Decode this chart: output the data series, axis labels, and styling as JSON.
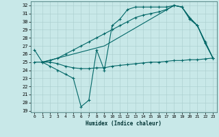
{
  "xlabel": "Humidex (Indice chaleur)",
  "background_color": "#c8e8e8",
  "grid_color": "#a8cccc",
  "line_color": "#006666",
  "ylim": [
    19,
    32.5
  ],
  "xlim": [
    -0.5,
    23.5
  ],
  "yticks": [
    19,
    20,
    21,
    22,
    23,
    24,
    25,
    26,
    27,
    28,
    29,
    30,
    31,
    32
  ],
  "xticks": [
    0,
    1,
    2,
    3,
    4,
    5,
    6,
    7,
    8,
    9,
    10,
    11,
    12,
    13,
    14,
    15,
    16,
    17,
    18,
    19,
    20,
    21,
    22,
    23
  ],
  "curves": [
    {
      "x": [
        0,
        1,
        2,
        3,
        4,
        5,
        6,
        7,
        8,
        9,
        10,
        11,
        12,
        13,
        14,
        15,
        16,
        17,
        18,
        19,
        20,
        21,
        22,
        23
      ],
      "y": [
        25.0,
        25.0,
        25.0,
        24.8,
        24.5,
        24.3,
        24.2,
        24.2,
        24.3,
        24.3,
        24.5,
        24.6,
        24.7,
        24.8,
        24.9,
        25.0,
        25.0,
        25.1,
        25.2,
        25.2,
        25.3,
        25.3,
        25.4,
        25.5
      ],
      "marker": "+",
      "markersize": 3.5,
      "linewidth": 0.8
    },
    {
      "x": [
        1,
        9,
        18,
        19,
        20,
        21,
        22,
        23
      ],
      "y": [
        25.0,
        27.0,
        32.0,
        31.8,
        30.5,
        29.5,
        27.5,
        25.5
      ],
      "marker": null,
      "markersize": 0,
      "linewidth": 0.8
    },
    {
      "x": [
        0,
        1,
        2,
        3,
        4,
        5,
        6,
        7,
        8,
        9,
        10,
        11,
        12,
        13,
        14,
        15,
        16,
        17,
        18,
        19,
        20,
        21,
        22,
        23
      ],
      "y": [
        26.5,
        25.0,
        24.5,
        24.0,
        23.5,
        23.0,
        19.5,
        20.3,
        26.5,
        24.0,
        29.5,
        30.3,
        31.5,
        31.8,
        31.8,
        31.8,
        31.8,
        31.8,
        32.0,
        31.8,
        30.3,
        29.5,
        27.5,
        25.5
      ],
      "marker": "+",
      "markersize": 3.5,
      "linewidth": 0.8
    },
    {
      "x": [
        1,
        2,
        3,
        4,
        5,
        6,
        7,
        8,
        9,
        10,
        11,
        12,
        13,
        14,
        15,
        16,
        17,
        18,
        19,
        20,
        21,
        22,
        23
      ],
      "y": [
        25.0,
        25.2,
        25.5,
        26.0,
        26.5,
        27.0,
        27.5,
        28.0,
        28.5,
        29.0,
        29.5,
        30.0,
        30.5,
        30.8,
        31.0,
        31.2,
        31.5,
        32.0,
        31.8,
        30.5,
        29.5,
        27.3,
        25.5
      ],
      "marker": "+",
      "markersize": 3.5,
      "linewidth": 0.8
    }
  ]
}
